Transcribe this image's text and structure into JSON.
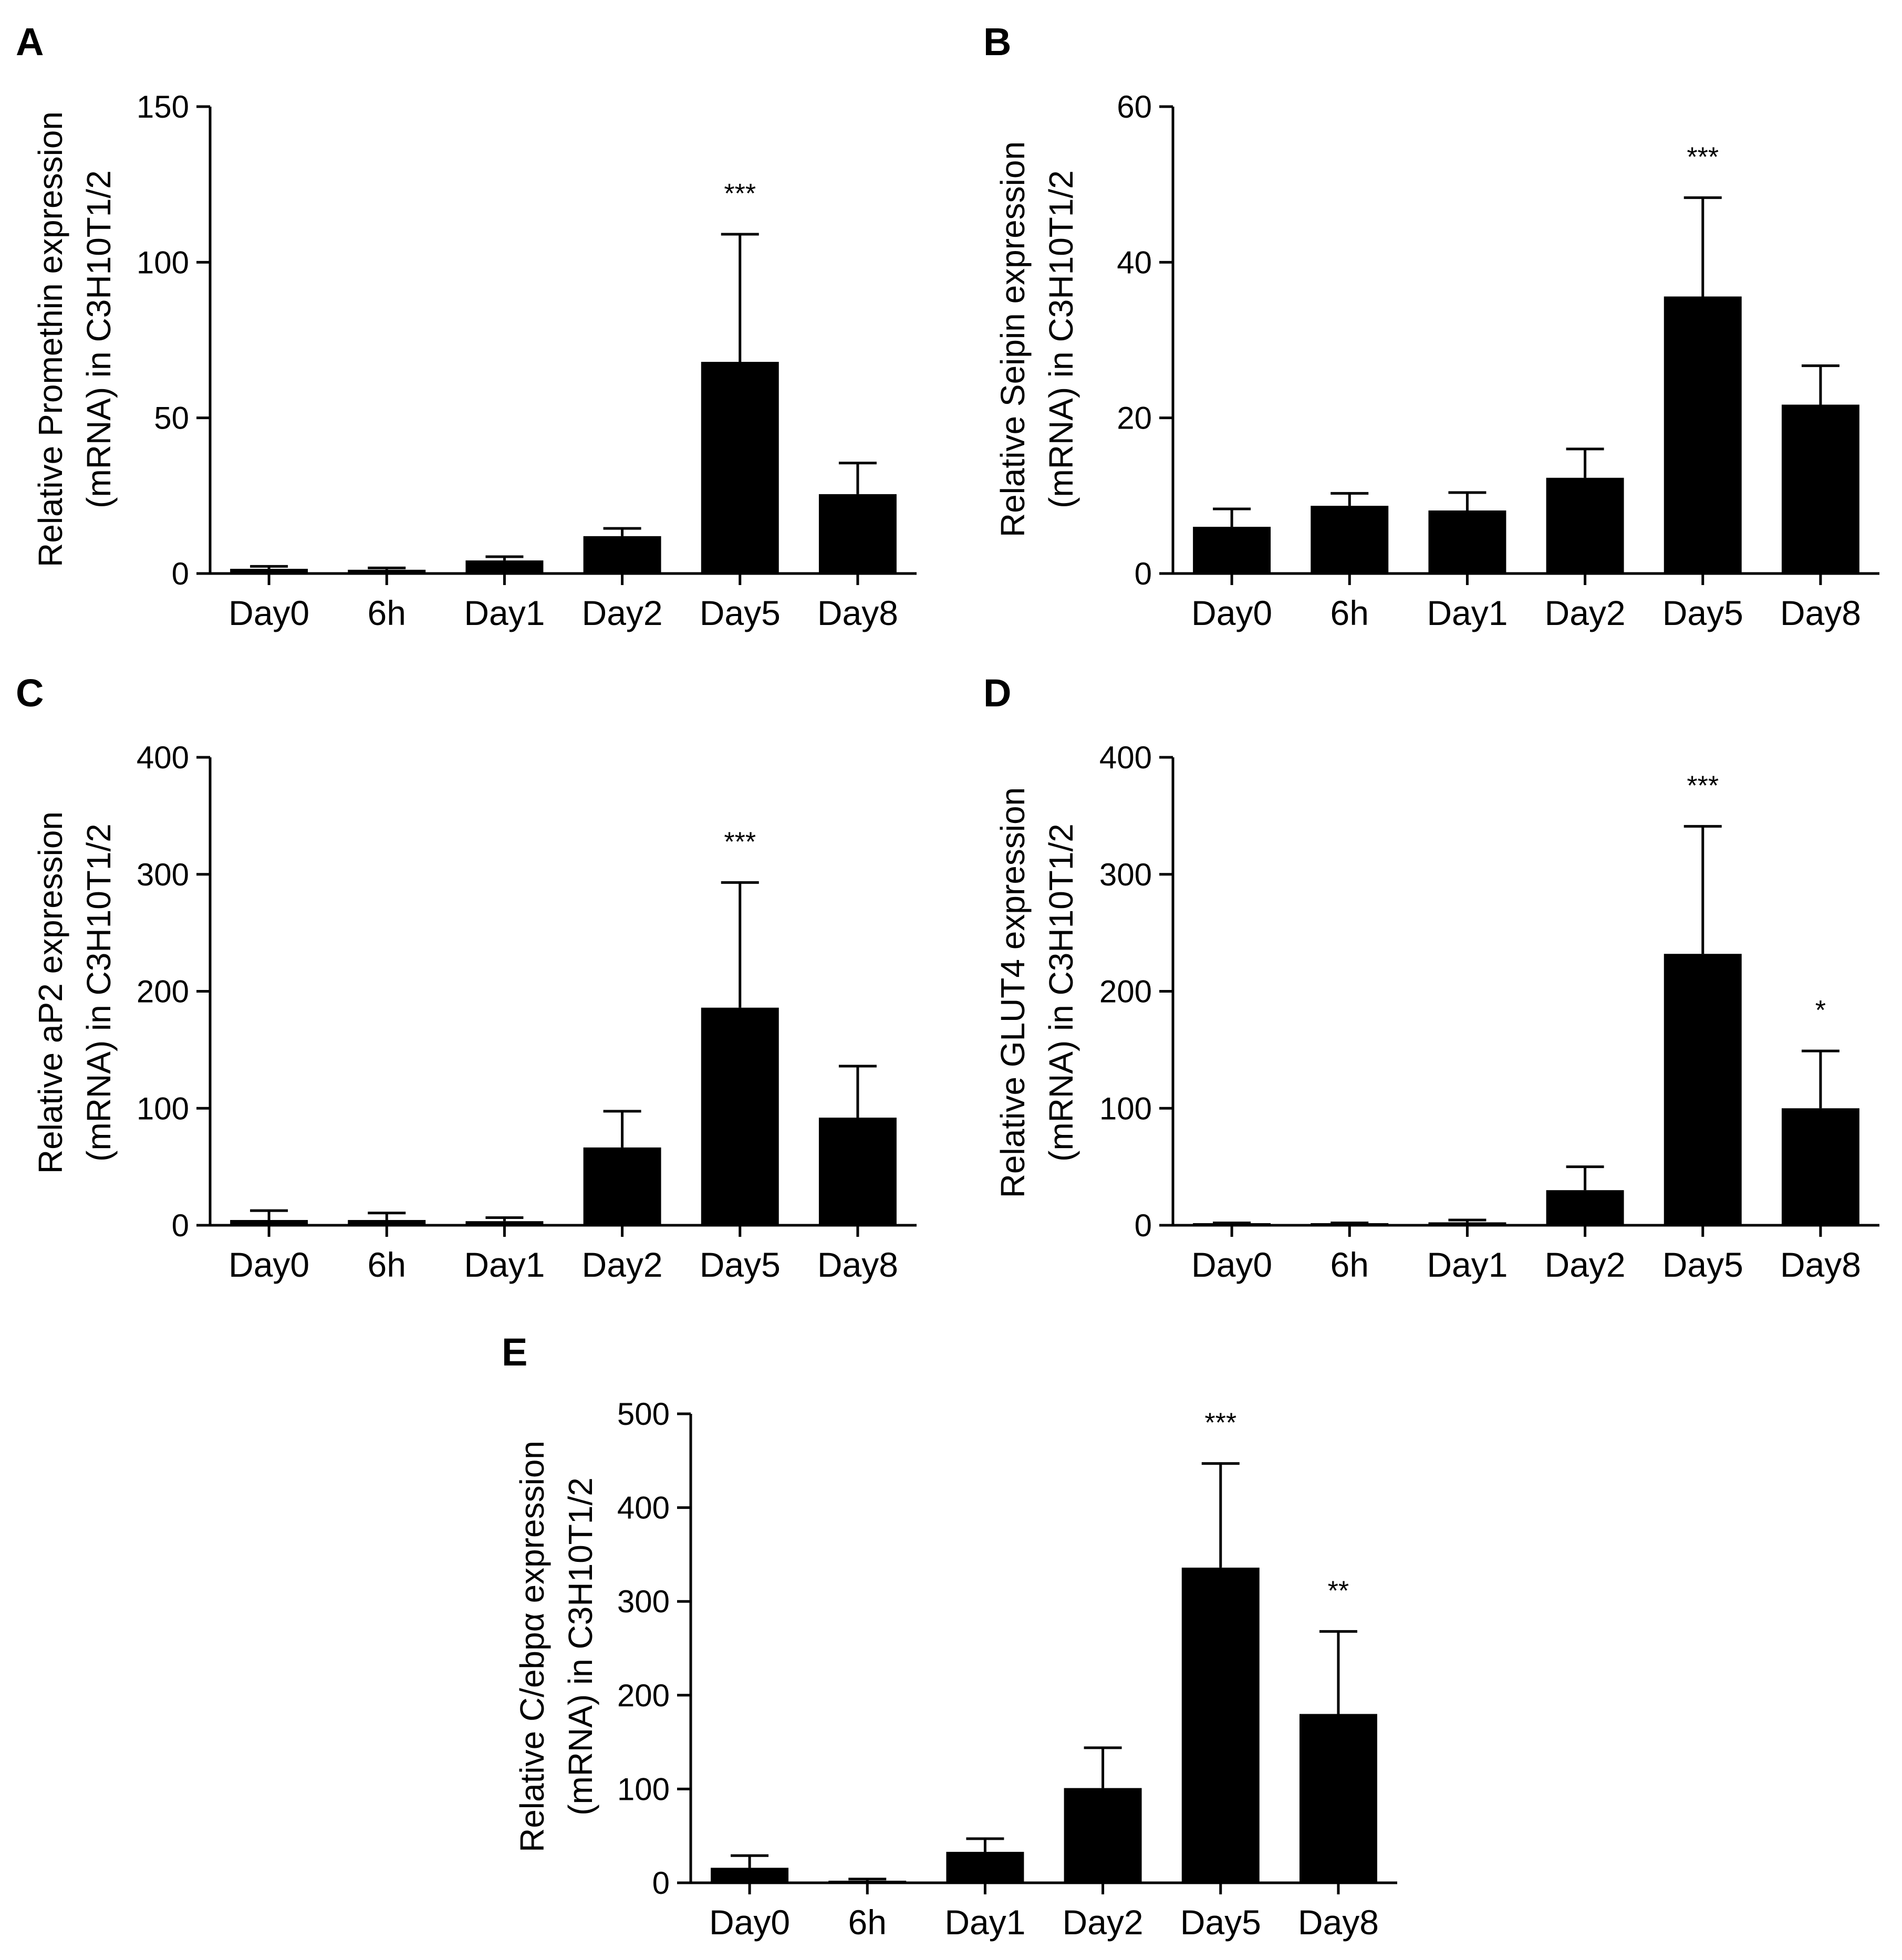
{
  "figure": {
    "panels": [
      {
        "letter": "A",
        "ylabel_line1": "Relative Promethin expression",
        "ylabel_line2": "(mRNA) in C3H10T1/2"
      },
      {
        "letter": "B",
        "ylabel_line1": "Relative Seipin expression",
        "ylabel_line2": "(mRNA) in C3H10T1/2"
      },
      {
        "letter": "C",
        "ylabel_line1": "Relative aP2 expression",
        "ylabel_line2": "(mRNA) in C3H10T1/2"
      },
      {
        "letter": "D",
        "ylabel_line1": "Relative GLUT4 expression",
        "ylabel_line2": "(mRNA) in C3H10T1/2"
      },
      {
        "letter": "E",
        "ylabel_line1": "Relative C/ebpα expression",
        "ylabel_line2": "(mRNA) in C3H10T1/2"
      }
    ]
  },
  "chart_data": [
    {
      "type": "bar",
      "panel": "A",
      "categories": [
        "Day0",
        "6h",
        "Day1",
        "Day2",
        "Day5",
        "Day8"
      ],
      "values": [
        1.5,
        1.2,
        4.2,
        12.0,
        68.0,
        25.5
      ],
      "errors": [
        0.8,
        0.6,
        1.2,
        2.5,
        41.0,
        10.0
      ],
      "significance": [
        "",
        "",
        "",
        "",
        "***",
        ""
      ],
      "ylabel": "Relative Promethin expression (mRNA) in C3H10T1/2",
      "ylim": [
        0,
        150
      ],
      "yticks": [
        0,
        50,
        100,
        150
      ],
      "color": "#000000"
    },
    {
      "type": "bar",
      "panel": "B",
      "categories": [
        "Day0",
        "6h",
        "Day1",
        "Day2",
        "Day5",
        "Day8"
      ],
      "values": [
        6.0,
        8.7,
        8.1,
        12.3,
        35.6,
        21.7
      ],
      "errors": [
        2.3,
        1.6,
        2.3,
        3.7,
        12.7,
        5.0
      ],
      "significance": [
        "",
        "",
        "",
        "",
        "***",
        ""
      ],
      "ylabel": "Relative Seipin expression (mRNA) in C3H10T1/2",
      "ylim": [
        0,
        60
      ],
      "yticks": [
        0,
        20,
        40,
        60
      ],
      "color": "#000000"
    },
    {
      "type": "bar",
      "panel": "C",
      "categories": [
        "Day0",
        "6h",
        "Day1",
        "Day2",
        "Day5",
        "Day8"
      ],
      "values": [
        4.5,
        4.5,
        3.5,
        66.5,
        186.0,
        92.0
      ],
      "errors": [
        8.0,
        6.0,
        3.0,
        31.0,
        107.0,
        44.0
      ],
      "significance": [
        "",
        "",
        "",
        "",
        "***",
        ""
      ],
      "ylabel": "Relative aP2 expression (mRNA) in C3H10T1/2",
      "ylim": [
        0,
        400
      ],
      "yticks": [
        0,
        100,
        200,
        300,
        400
      ],
      "color": "#000000"
    },
    {
      "type": "bar",
      "panel": "D",
      "categories": [
        "Day0",
        "6h",
        "Day1",
        "Day2",
        "Day5",
        "Day8"
      ],
      "values": [
        1.0,
        1.0,
        2.5,
        30.0,
        232.0,
        100.0
      ],
      "errors": [
        1.0,
        1.0,
        2.0,
        20.0,
        109.0,
        49.0
      ],
      "significance": [
        "",
        "",
        "",
        "",
        "***",
        "*"
      ],
      "ylabel": "Relative GLUT4 expression (mRNA) in C3H10T1/2",
      "ylim": [
        0,
        400
      ],
      "yticks": [
        0,
        100,
        200,
        300,
        400
      ],
      "color": "#000000"
    },
    {
      "type": "bar",
      "panel": "E",
      "categories": [
        "Day0",
        "6h",
        "Day1",
        "Day2",
        "Day5",
        "Day8"
      ],
      "values": [
        16.0,
        1.0,
        33.0,
        101.0,
        336.0,
        180.0
      ],
      "errors": [
        13.0,
        3.0,
        14.0,
        43.0,
        111.0,
        88.0
      ],
      "significance": [
        "",
        "",
        "",
        "",
        "***",
        "**"
      ],
      "ylabel": "Relative C/ebpα expression (mRNA) in C3H10T1/2",
      "ylim": [
        0,
        500
      ],
      "yticks": [
        0,
        100,
        200,
        300,
        400,
        500
      ],
      "color": "#000000"
    }
  ]
}
